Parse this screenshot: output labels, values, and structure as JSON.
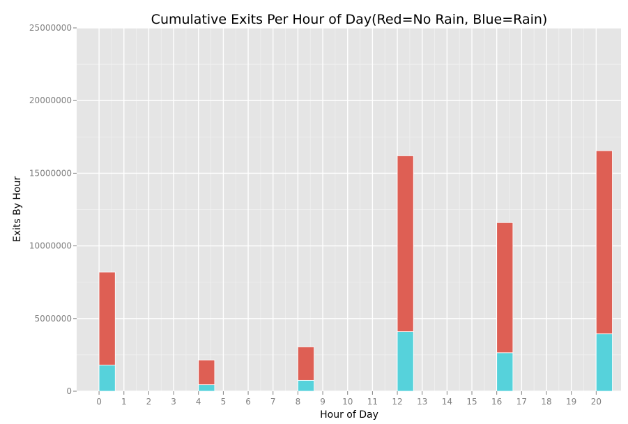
{
  "chart_data": {
    "type": "bar",
    "title": "Cumulative Exits Per Hour of Day(Red=No Rain, Blue=Rain)",
    "xlabel": "Hour of Day",
    "ylabel": "Exits By Hour",
    "xlim": [
      -0.9,
      21
    ],
    "ylim": [
      0,
      25000000
    ],
    "x_ticks": [
      0,
      1,
      2,
      3,
      4,
      5,
      6,
      7,
      8,
      9,
      10,
      11,
      12,
      13,
      14,
      15,
      16,
      17,
      18,
      19,
      20
    ],
    "y_ticks": [
      0,
      5000000,
      10000000,
      15000000,
      20000000,
      25000000
    ],
    "y_tick_labels": [
      "0",
      "5000000",
      "10000000",
      "15000000",
      "20000000",
      "25000000"
    ],
    "bar_width": 0.65,
    "categories": [
      0,
      4,
      8,
      12,
      16,
      20
    ],
    "series": [
      {
        "key": "rain",
        "values": [
          1800000,
          450000,
          750000,
          4100000,
          2650000,
          3950000
        ]
      },
      {
        "key": "no_rain",
        "values": [
          6400000,
          1700000,
          2300000,
          12100000,
          8950000,
          12600000
        ]
      }
    ],
    "stacked": true,
    "grid": true,
    "legend": "none",
    "colors": {
      "rain": "#56d2db",
      "no_rain": "#de5f54",
      "panel": "#e5e5e5",
      "grid_major": "#ffffff",
      "grid_minor": "#f2f2f2"
    }
  }
}
